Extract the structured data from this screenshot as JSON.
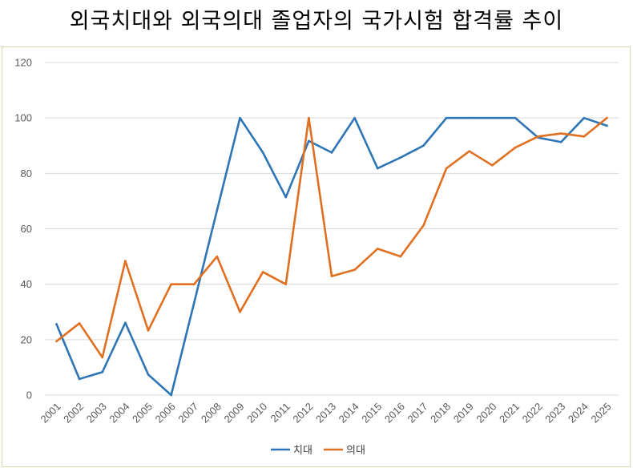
{
  "chart_data": {
    "type": "line",
    "title": "외국치대와 외국의대 졸업자의 국가시험 합격률 추이",
    "xlabel": "",
    "ylabel": "",
    "ylim": [
      0,
      120
    ],
    "yticks": [
      0,
      20,
      40,
      60,
      80,
      100,
      120
    ],
    "grid": true,
    "legend_position": "bottom",
    "categories": [
      "2001",
      "2002",
      "2003",
      "2004",
      "2005",
      "2006",
      "2007",
      "2008",
      "2009",
      "2010",
      "2011",
      "2012",
      "2013",
      "2014",
      "2015",
      "2016",
      "2017",
      "2018",
      "2019",
      "2020",
      "2021",
      "2022",
      "2023",
      "2024",
      "2025"
    ],
    "series": [
      {
        "name": "치대",
        "color": "#2e75b6",
        "values": [
          25.6,
          5.8,
          8.3,
          26.1,
          7.4,
          0,
          33.3,
          66.7,
          100,
          87.5,
          71.4,
          91.7,
          87.5,
          100,
          81.8,
          85.7,
          90,
          100,
          100,
          100,
          100,
          92.9,
          91.3,
          100,
          97.2
        ]
      },
      {
        "name": "의대",
        "color": "#e07020",
        "values": [
          19.4,
          25.9,
          13.6,
          48.4,
          23.3,
          40,
          40,
          50,
          30,
          44.4,
          40,
          100,
          42.9,
          45.2,
          52.8,
          50,
          61.2,
          81.8,
          88,
          82.9,
          89.3,
          93.3,
          94.4,
          93.3,
          100
        ]
      }
    ]
  }
}
